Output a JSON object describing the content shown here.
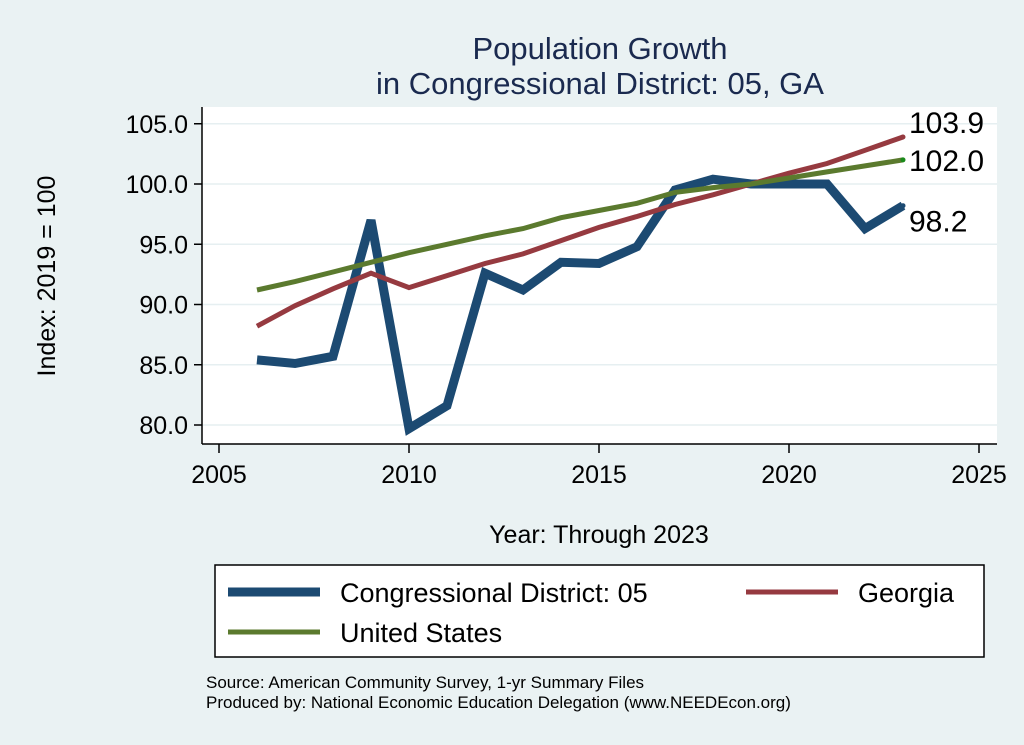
{
  "chart_data": {
    "type": "line",
    "title": [
      "Population Growth",
      "in Congressional District: 05, GA"
    ],
    "xlabel": "Year: Through 2023",
    "ylabel": "Index: 2019 = 100",
    "xlim": [
      2004,
      2026
    ],
    "ylim": [
      78.6,
      106.4
    ],
    "xticks": [
      2005,
      2010,
      2015,
      2020,
      2025
    ],
    "xtick_labels": [
      "2005",
      "2010",
      "2015",
      "2020",
      "2025"
    ],
    "yticks": [
      80,
      85,
      90,
      95,
      100,
      105
    ],
    "ytick_labels": [
      "80.0",
      "85.0",
      "90.0",
      "95.0",
      "100.0",
      "105.0"
    ],
    "grid": "horizontal",
    "x": [
      2006,
      2007,
      2008,
      2009,
      2010,
      2011,
      2012,
      2013,
      2014,
      2015,
      2016,
      2017,
      2018,
      2019,
      2020,
      2021,
      2022,
      2023
    ],
    "series": [
      {
        "name": "Congressional District: 05",
        "color": "#1c4a72",
        "values": [
          85.4,
          85.1,
          85.7,
          97.0,
          79.7,
          81.6,
          92.6,
          91.2,
          93.5,
          93.4,
          94.8,
          99.5,
          100.4,
          100.0,
          100.0,
          100.0,
          96.3,
          98.2
        ],
        "end_label": "98.2"
      },
      {
        "name": "Georgia",
        "color": "#963a40",
        "values": [
          88.2,
          89.9,
          91.3,
          92.6,
          91.4,
          92.4,
          93.4,
          94.2,
          95.3,
          96.4,
          97.3,
          98.3,
          99.1,
          100.0,
          100.9,
          101.7,
          102.8,
          103.9
        ],
        "end_label": "103.9"
      },
      {
        "name": "United States",
        "color": "#5b7a2e",
        "values": [
          91.2,
          91.9,
          92.7,
          93.5,
          94.3,
          95.0,
          95.7,
          96.3,
          97.2,
          97.8,
          98.4,
          99.3,
          99.7,
          100.0,
          100.5,
          101.0,
          101.5,
          102.0
        ],
        "end_label": "102.0"
      }
    ],
    "legend": {
      "placement": "bottom",
      "entries": [
        "Congressional District: 05",
        "Georgia",
        "United States"
      ]
    },
    "notes": [
      "Source: American Community Survey, 1-yr Summary Files",
      "Produced by: National Economic Education Delegation (www.NEEDEcon.org)"
    ]
  }
}
